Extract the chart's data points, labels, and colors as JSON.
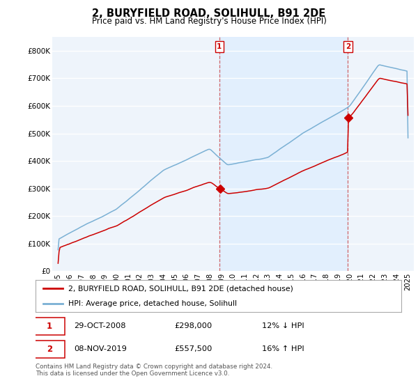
{
  "title": "2, BURYFIELD ROAD, SOLIHULL, B91 2DE",
  "subtitle": "Price paid vs. HM Land Registry's House Price Index (HPI)",
  "property_label": "2, BURYFIELD ROAD, SOLIHULL, B91 2DE (detached house)",
  "hpi_label": "HPI: Average price, detached house, Solihull",
  "transaction1_date": "29-OCT-2008",
  "transaction1_price": 298000,
  "transaction1_pct": "12% ↓ HPI",
  "transaction2_date": "08-NOV-2019",
  "transaction2_price": 557500,
  "transaction2_pct": "16% ↑ HPI",
  "footer": "Contains HM Land Registry data © Crown copyright and database right 2024.\nThis data is licensed under the Open Government Licence v3.0.",
  "property_color": "#cc0000",
  "hpi_color": "#7ab0d4",
  "shade_color": "#ddeeff",
  "background_color": "#eef4fb",
  "ylim": [
    0,
    850000
  ],
  "yticks": [
    0,
    100000,
    200000,
    300000,
    400000,
    500000,
    600000,
    700000,
    800000
  ],
  "ytick_labels": [
    "£0",
    "£100K",
    "£200K",
    "£300K",
    "£400K",
    "£500K",
    "£600K",
    "£700K",
    "£800K"
  ],
  "t1_year": 2008.83,
  "t2_year": 2019.85,
  "prop_price1": 298000,
  "prop_price2": 557500
}
